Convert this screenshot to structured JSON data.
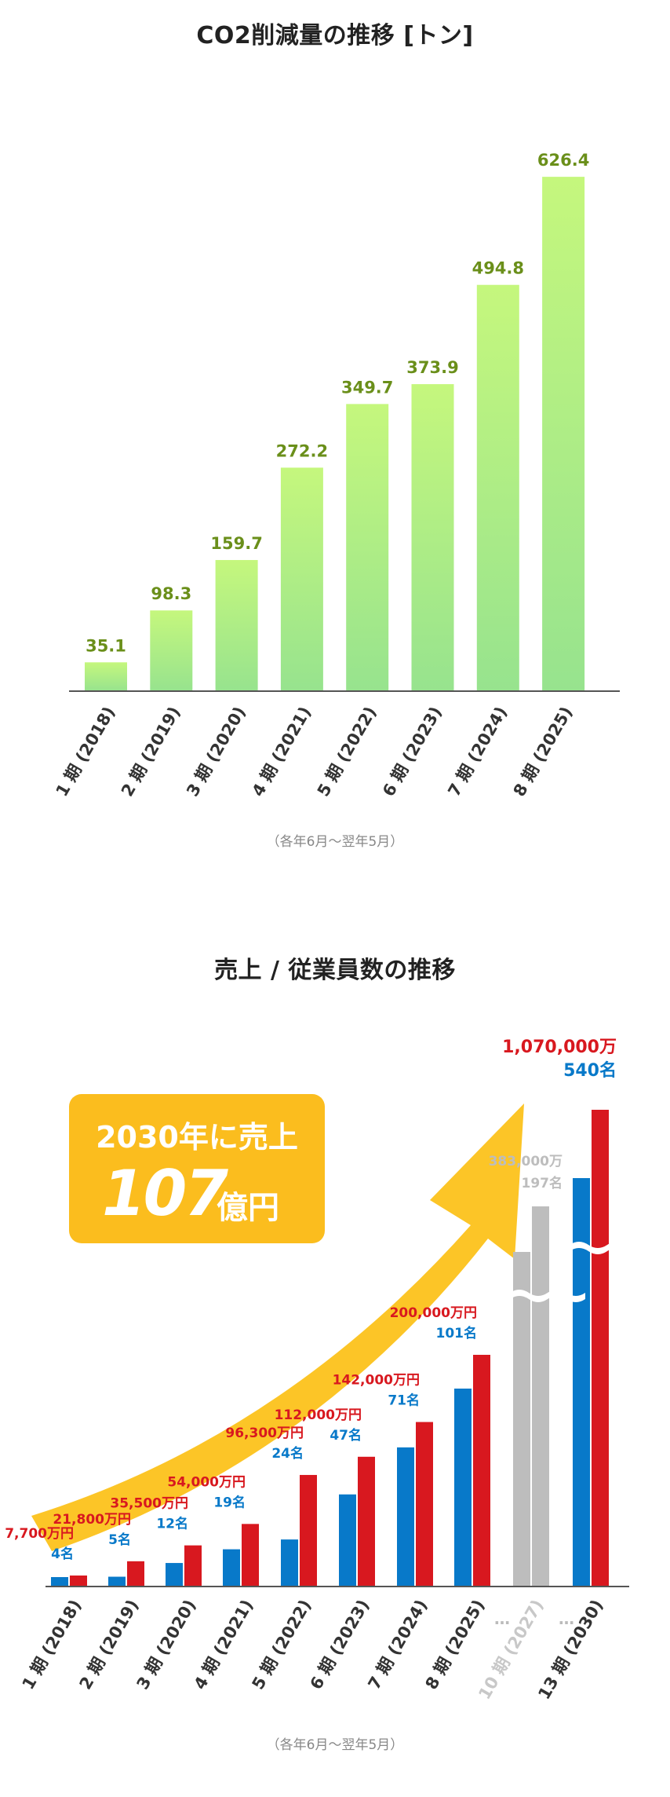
{
  "chart_data": [
    {
      "type": "bar",
      "title": "CO2削減量の推移 [トン]",
      "categories": [
        "1 期 (2018)",
        "2 期 (2019)",
        "3 期 (2020)",
        "4 期 (2021)",
        "5 期 (2022)",
        "6 期 (2023)",
        "7 期 (2024)",
        "8 期 (2025)"
      ],
      "values": [
        35.1,
        98.3,
        159.7,
        272.2,
        349.7,
        373.9,
        494.8,
        626.4
      ],
      "data_labels": [
        "35.1",
        "98.3",
        "159.7",
        "272.2",
        "349.7",
        "373.9",
        "494.8",
        "626.4"
      ],
      "note": "（各年6月〜翌年5月）",
      "ylim": [
        0,
        660
      ],
      "grid": false,
      "colors": {
        "bar_top": "#c5f77d",
        "bar_bottom": "#97e38e",
        "label": "#6a8f1a",
        "axis": "#555555"
      }
    },
    {
      "type": "bar",
      "title": "売上 / 従業員数の推移",
      "categories": [
        "1 期 (2018)",
        "2 期 (2019)",
        "3 期 (2020)",
        "4 期 (2021)",
        "5 期 (2022)",
        "6 期 (2023)",
        "7 期 (2024)",
        "8 期 (2025)",
        "10 期 (2027)",
        "13 期 (2030)"
      ],
      "series": [
        {
          "values": [
            4,
            5,
            12,
            19,
            24,
            47,
            71,
            101,
            197,
            540
          ],
          "labels": [
            "4名",
            "5名",
            "12名",
            "19名",
            "24名",
            "47名",
            "71名",
            "101名",
            "197名",
            "540名"
          ]
        },
        {
          "values": [
            7700,
            21800,
            35500,
            54000,
            96300,
            112000,
            142000,
            200000,
            383000,
            1070000
          ],
          "labels": [
            "7,700万円",
            "21,800万円",
            "35,500万円",
            "54,000万円",
            "96,300万円",
            "112,000万円",
            "142,000万円",
            "200,000万円",
            "383,000万",
            "1,070,000万"
          ]
        }
      ],
      "projected": [
        false,
        false,
        false,
        false,
        false,
        false,
        false,
        false,
        true,
        false
      ],
      "axis_break": true,
      "gap_marks": [
        "…",
        "…"
      ],
      "note": "（各年6月〜翌年5月）",
      "callout": {
        "line1": "2030年に売上",
        "big": "107",
        "unit": "億円"
      },
      "colors": {
        "employees": "#0879c9",
        "sales": "#d8181f",
        "projected": "#bdbdbd",
        "arrow": "#fcc21b",
        "callout_bg": "#fbbd1e"
      }
    }
  ]
}
